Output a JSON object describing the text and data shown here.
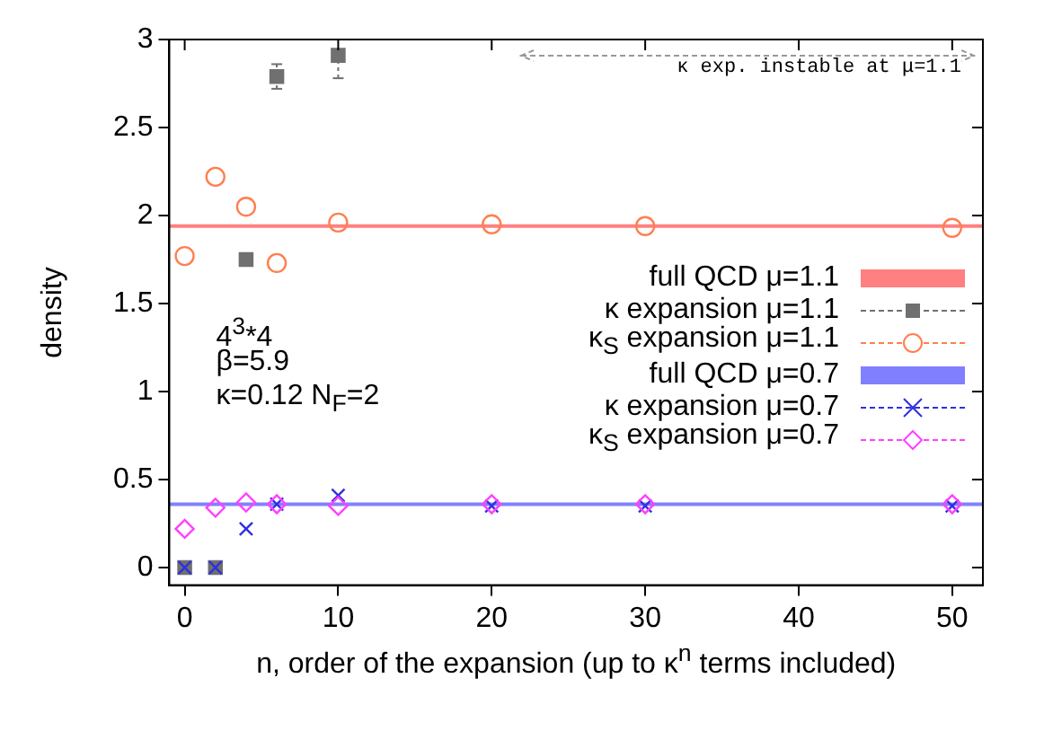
{
  "chart_data": {
    "type": "scatter",
    "xlabel": "n, order of the expansion (up to κ$^{n}$ terms included)",
    "ylabel": "density",
    "xlim": [
      -1,
      52
    ],
    "xticks": [
      0,
      10,
      20,
      30,
      40,
      50
    ],
    "ylim": [
      -0.1,
      3
    ],
    "yticks": [
      0,
      0.5,
      1,
      1.5,
      2,
      2.5,
      3
    ],
    "grid": false,
    "legend": "right",
    "annotations": [
      "κ exp. instable at μ=1.1",
      "4$^{3}$*4",
      "β=5.9",
      "κ=0.12 N$_{F}$=2"
    ],
    "series": [
      {
        "name": "full QCD μ=1.1",
        "type": "line",
        "color": "#ff8080",
        "marker": "none",
        "x": [
          -1,
          52
        ],
        "values": [
          1.94,
          1.94
        ]
      },
      {
        "name": "κ expansion μ=1.1",
        "color": "#707070",
        "marker": "square",
        "x": [
          0,
          2,
          4,
          6,
          10
        ],
        "values": [
          0,
          0,
          1.75,
          2.79,
          2.91
        ],
        "errors": [
          null,
          null,
          null,
          [
            2.72,
            2.86
          ],
          [
            2.78,
            2.93
          ]
        ]
      },
      {
        "name": "κ$_{S}$ expansion μ=1.1",
        "color": "#ff7f50",
        "marker": "circle",
        "x": [
          0,
          2,
          4,
          6,
          10,
          20,
          30,
          50
        ],
        "values": [
          1.77,
          2.22,
          2.05,
          1.73,
          1.96,
          1.95,
          1.94,
          1.93
        ]
      },
      {
        "name": "full QCD μ=0.7",
        "type": "line",
        "color": "#8080ff",
        "marker": "none",
        "x": [
          -1,
          52
        ],
        "values": [
          0.36,
          0.36
        ]
      },
      {
        "name": "κ expansion μ=0.7",
        "color": "#3030e0",
        "marker": "cross",
        "x": [
          0,
          2,
          4,
          6,
          10,
          20,
          30,
          50
        ],
        "values": [
          0,
          0,
          0.22,
          0.36,
          0.41,
          0.35,
          0.35,
          0.35
        ]
      },
      {
        "name": "κ$_{S}$ expansion μ=0.7",
        "color": "#ff40ff",
        "marker": "diamond",
        "x": [
          0,
          2,
          4,
          6,
          10,
          20,
          30,
          50
        ],
        "values": [
          0.22,
          0.34,
          0.37,
          0.36,
          0.35,
          0.36,
          0.36,
          0.36
        ]
      }
    ]
  }
}
